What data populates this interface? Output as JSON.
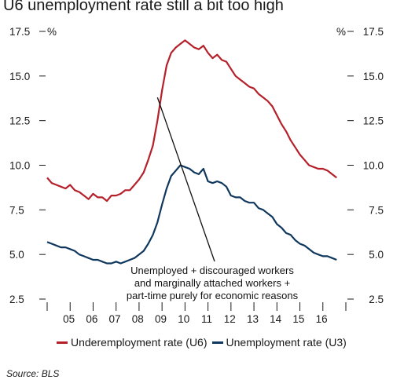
{
  "chart_data": {
    "type": "line",
    "title": "U6 unemployment rate still a bit too high",
    "y_unit_left": "%",
    "y_unit_right": "%",
    "ylim": [
      2.5,
      17.5
    ],
    "yticks": [
      "17.5",
      "15.0",
      "12.5",
      "10.0",
      "7.5",
      "5.0",
      "2.5"
    ],
    "yticks_values": [
      17.5,
      15.0,
      12.5,
      10.0,
      7.5,
      5.0,
      2.5
    ],
    "xlim": [
      2004.0,
      2017.0
    ],
    "xticks": [
      "05",
      "06",
      "07",
      "08",
      "09",
      "10",
      "11",
      "12",
      "13",
      "14",
      "15",
      "16"
    ],
    "grid": false,
    "legend_position": "bottom",
    "series": [
      {
        "name": "Underemployment rate (U6)",
        "color": "#b5202a",
        "x": [
          2004.0,
          2004.2,
          2004.4,
          2004.6,
          2004.8,
          2005.0,
          2005.2,
          2005.4,
          2005.6,
          2005.8,
          2006.0,
          2006.2,
          2006.4,
          2006.6,
          2006.8,
          2007.0,
          2007.2,
          2007.4,
          2007.6,
          2007.8,
          2008.0,
          2008.2,
          2008.4,
          2008.6,
          2008.8,
          2009.0,
          2009.2,
          2009.4,
          2009.6,
          2009.8,
          2010.0,
          2010.2,
          2010.4,
          2010.6,
          2010.8,
          2011.0,
          2011.2,
          2011.4,
          2011.6,
          2011.8,
          2012.0,
          2012.2,
          2012.4,
          2012.6,
          2012.8,
          2013.0,
          2013.2,
          2013.4,
          2013.6,
          2013.8,
          2014.0,
          2014.2,
          2014.4,
          2014.6,
          2014.8,
          2015.0,
          2015.2,
          2015.4,
          2015.6,
          2015.8,
          2016.0,
          2016.2,
          2016.4,
          2016.6
        ],
        "values": [
          9.3,
          9.0,
          8.9,
          8.8,
          8.7,
          8.9,
          8.6,
          8.5,
          8.3,
          8.1,
          8.4,
          8.2,
          8.2,
          8.0,
          8.3,
          8.3,
          8.4,
          8.6,
          8.6,
          8.9,
          9.2,
          9.6,
          10.3,
          11.1,
          12.5,
          14.2,
          15.6,
          16.3,
          16.6,
          16.8,
          17.0,
          16.8,
          16.6,
          16.5,
          16.7,
          16.3,
          16.0,
          16.2,
          15.9,
          15.8,
          15.4,
          15.0,
          14.8,
          14.6,
          14.4,
          14.3,
          14.0,
          13.8,
          13.6,
          13.3,
          12.8,
          12.3,
          11.9,
          11.4,
          11.0,
          10.6,
          10.3,
          10.0,
          9.9,
          9.8,
          9.8,
          9.7,
          9.5,
          9.3
        ]
      },
      {
        "name": "Unemployment rate (U3)",
        "color": "#10385e",
        "x": [
          2004.0,
          2004.2,
          2004.4,
          2004.6,
          2004.8,
          2005.0,
          2005.2,
          2005.4,
          2005.6,
          2005.8,
          2006.0,
          2006.2,
          2006.4,
          2006.6,
          2006.8,
          2007.0,
          2007.2,
          2007.4,
          2007.6,
          2007.8,
          2008.0,
          2008.2,
          2008.4,
          2008.6,
          2008.8,
          2009.0,
          2009.2,
          2009.4,
          2009.6,
          2009.8,
          2010.0,
          2010.2,
          2010.4,
          2010.6,
          2010.8,
          2011.0,
          2011.2,
          2011.4,
          2011.6,
          2011.8,
          2012.0,
          2012.2,
          2012.4,
          2012.6,
          2012.8,
          2013.0,
          2013.2,
          2013.4,
          2013.6,
          2013.8,
          2014.0,
          2014.2,
          2014.4,
          2014.6,
          2014.8,
          2015.0,
          2015.2,
          2015.4,
          2015.6,
          2015.8,
          2016.0,
          2016.2,
          2016.4,
          2016.6
        ],
        "values": [
          5.7,
          5.6,
          5.5,
          5.4,
          5.4,
          5.3,
          5.2,
          5.0,
          4.9,
          4.8,
          4.7,
          4.7,
          4.6,
          4.5,
          4.5,
          4.6,
          4.5,
          4.6,
          4.7,
          4.8,
          5.0,
          5.2,
          5.6,
          6.1,
          6.8,
          7.8,
          8.7,
          9.4,
          9.7,
          10.0,
          9.9,
          9.8,
          9.6,
          9.5,
          9.8,
          9.1,
          9.0,
          9.1,
          9.0,
          8.8,
          8.3,
          8.2,
          8.2,
          8.0,
          7.9,
          7.9,
          7.6,
          7.5,
          7.3,
          7.1,
          6.7,
          6.5,
          6.2,
          6.1,
          5.8,
          5.6,
          5.5,
          5.3,
          5.1,
          5.0,
          4.9,
          4.9,
          4.8,
          4.7
        ]
      }
    ],
    "annotation": {
      "lines": [
        "Unemployed + discouraged workers",
        "and marginally attached workers +",
        "part-time purely for economic reasons"
      ],
      "points_to": {
        "x": 2008.8,
        "y": 13.8
      }
    }
  },
  "legend": {
    "u6_label": "Underemployment rate (U6)",
    "u3_label": "Unemployment rate (U3)"
  },
  "source": "Source: BLS"
}
